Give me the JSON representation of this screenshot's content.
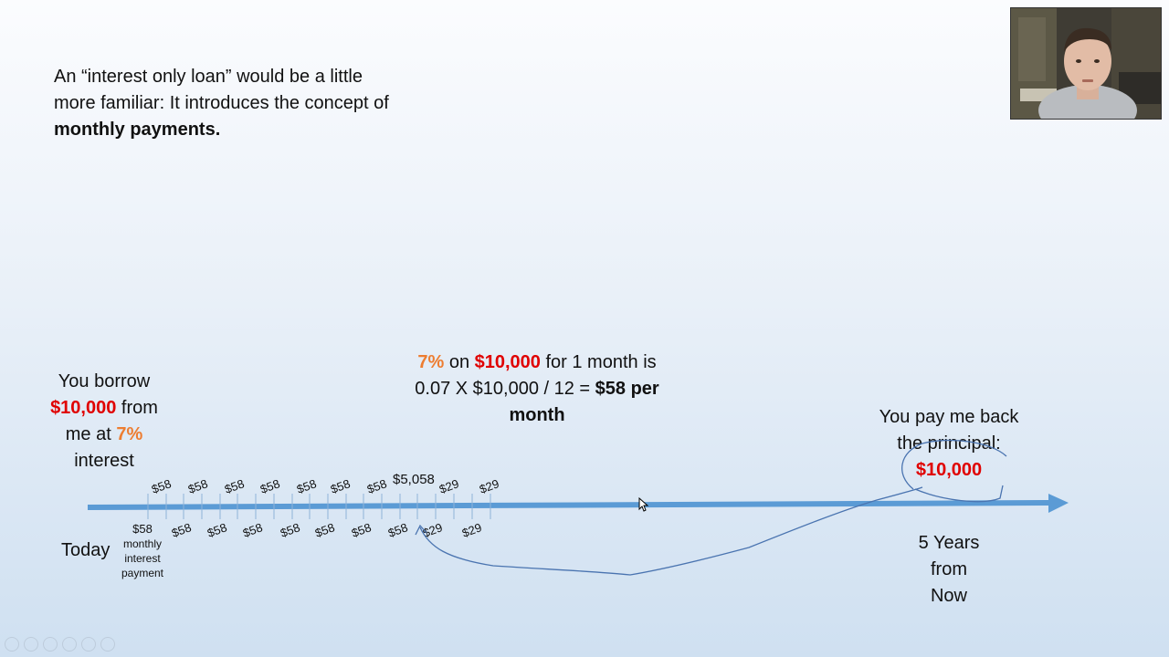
{
  "intro": {
    "line1": "An “interest only loan” would be a little more familiar: It introduces the concept of ",
    "bold": "monthly payments."
  },
  "borrow": {
    "l1": "You borrow",
    "amount": "$10,000",
    "from": " from",
    "me_at": "me at ",
    "rate": "7%",
    "interest": "interest"
  },
  "calc": {
    "rate": "7%",
    "on": " on ",
    "amount": "$10,000",
    "for": " for 1 month is",
    "formula": "0.07 X $10,000 / 12 = ",
    "result": "$58 per month"
  },
  "payback": {
    "l1": "You pay me back",
    "l2": "the principal:",
    "amount": "$10,000"
  },
  "timeline": {
    "today": "Today",
    "end": [
      "5 Years",
      "from",
      "Now"
    ],
    "first_payment": "$58",
    "first_payment_note": "monthly interest payment",
    "upper_labels": [
      "$58",
      "$58",
      "$58",
      "$58",
      "$58",
      "$58",
      "$58",
      "$5,058",
      "$29",
      "$29"
    ],
    "lower_labels": [
      "$58",
      "$58",
      "$58",
      "$58",
      "$58",
      "$58",
      "$58",
      "$29",
      "$29"
    ]
  },
  "icons": [
    "prev-icon",
    "next-icon",
    "pen-icon",
    "slides-icon",
    "zoom-icon",
    "more-icon"
  ],
  "colors": {
    "accent_red": "#e00000",
    "accent_orange": "#ed7d31",
    "arrow": "#5b9bd5",
    "ink": "#4a74b0"
  }
}
